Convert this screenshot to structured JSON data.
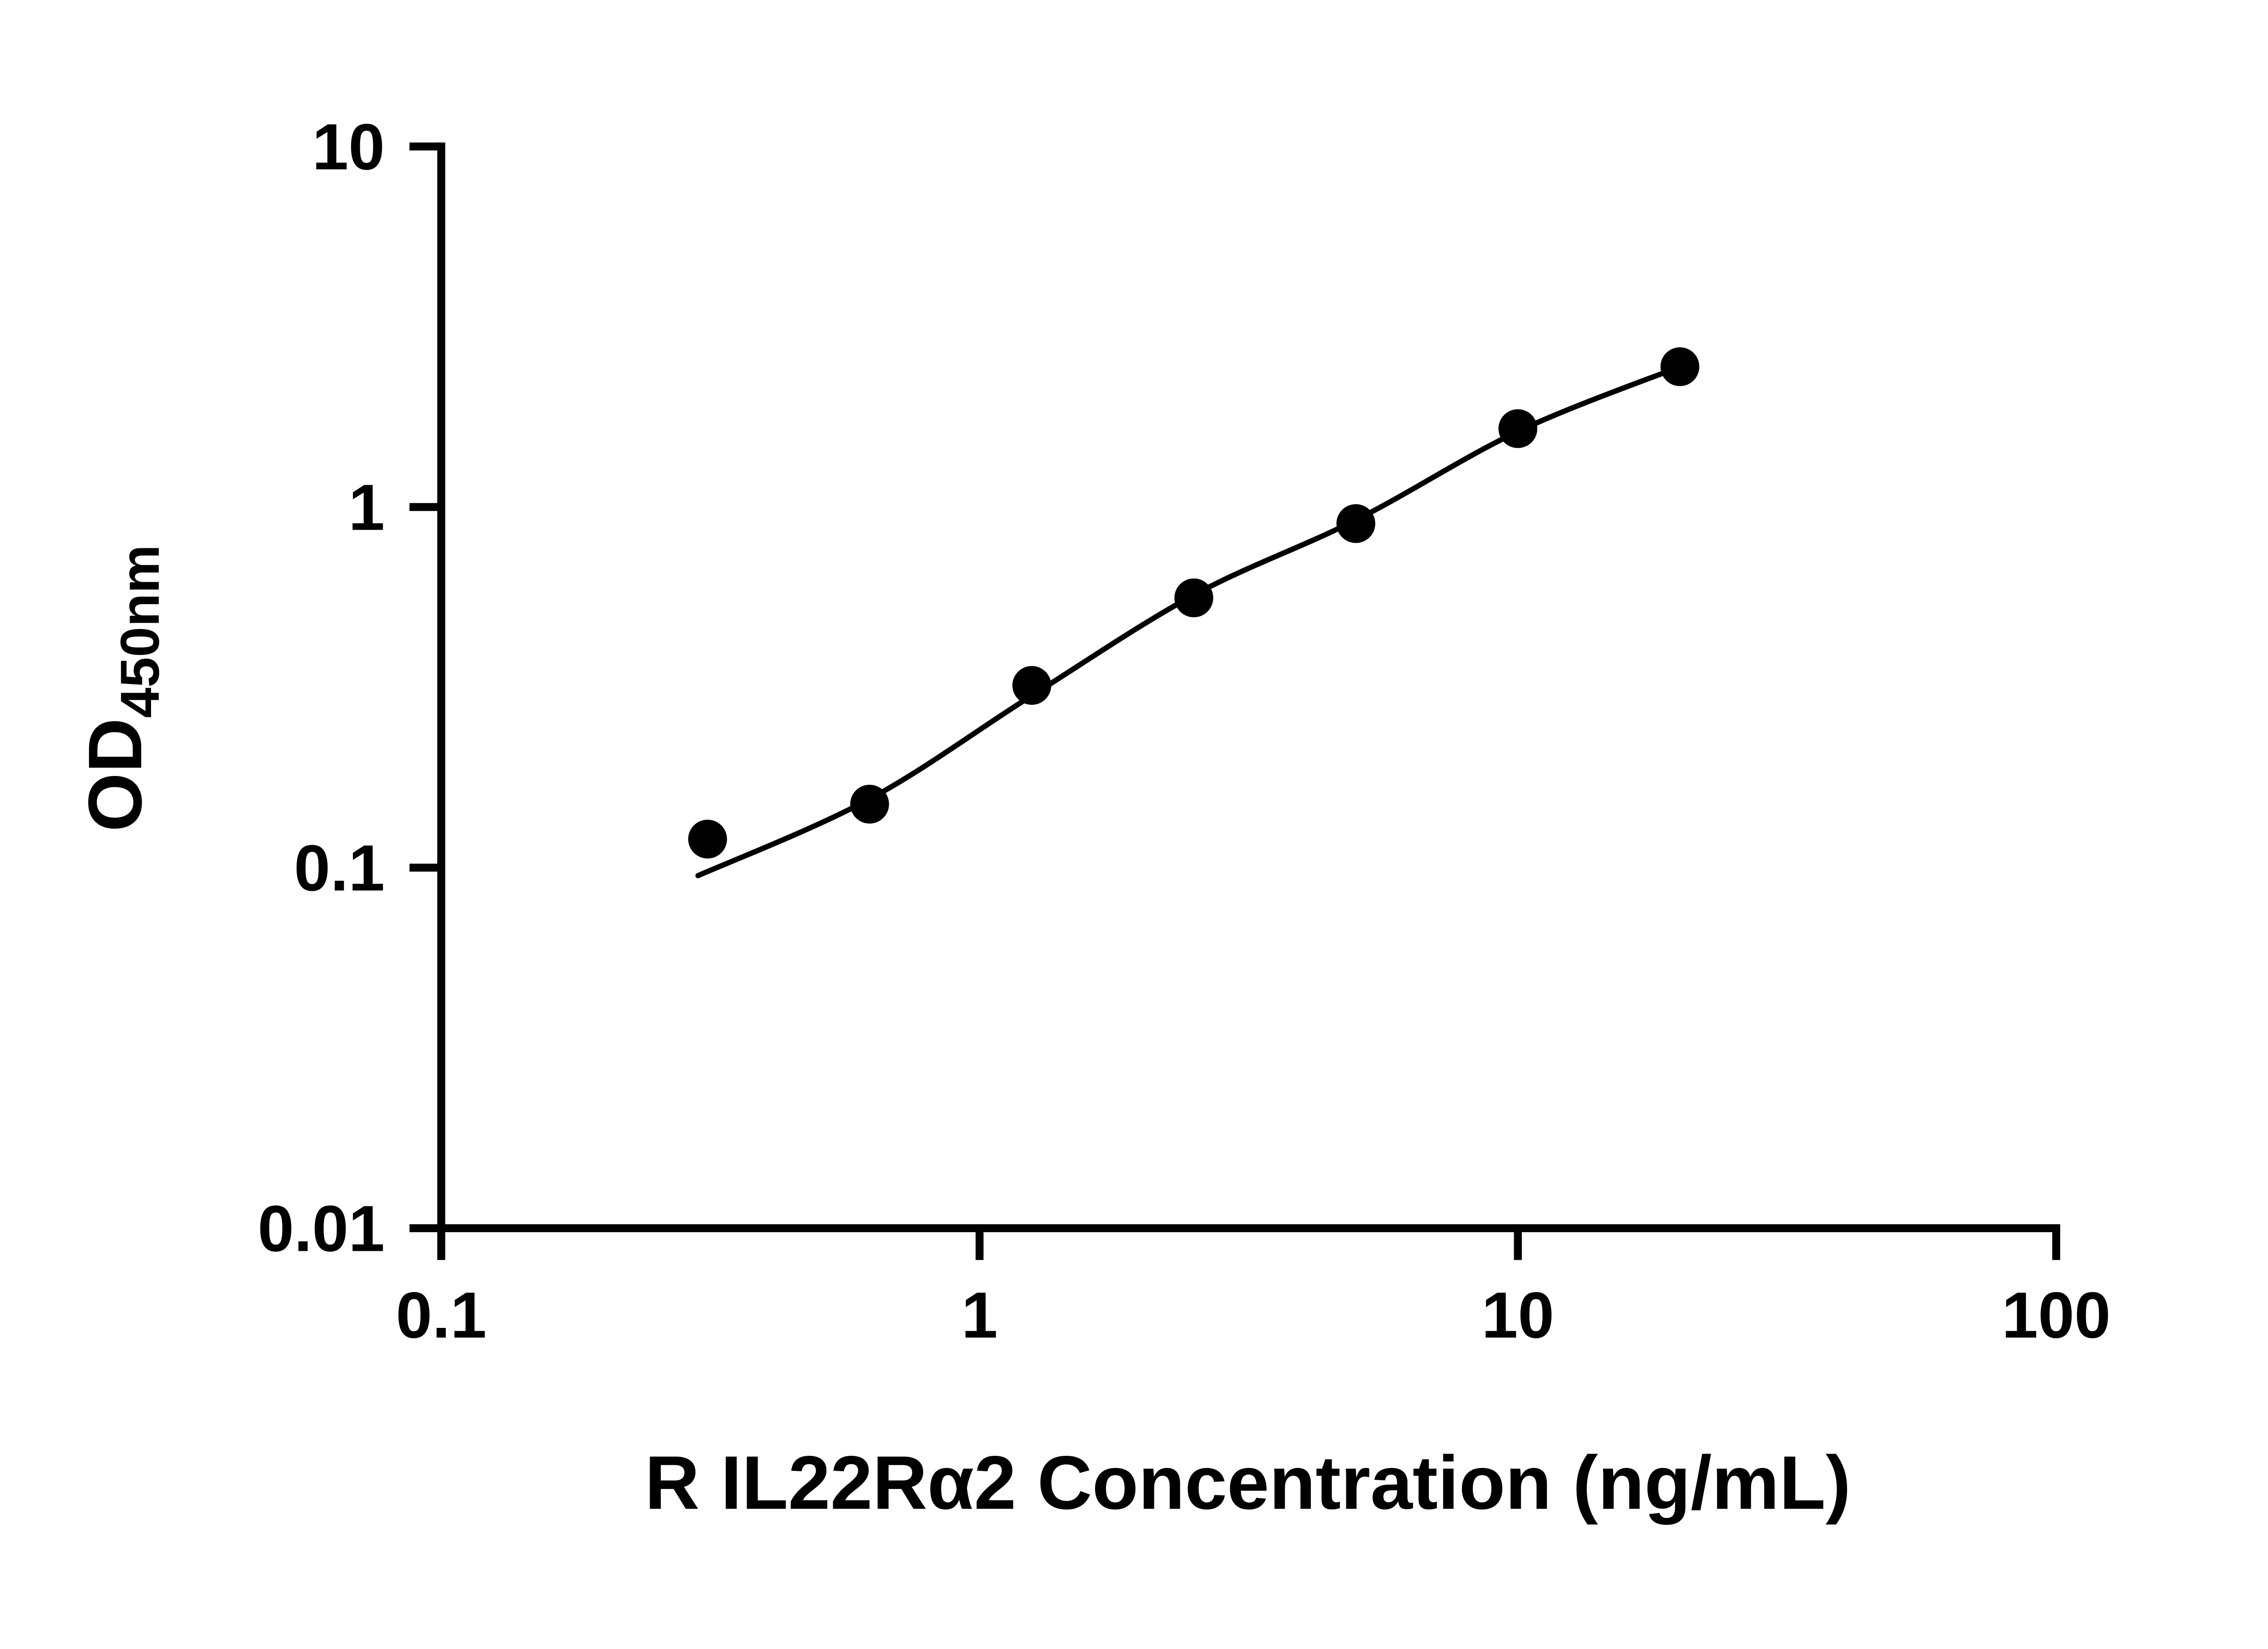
{
  "chart_data": {
    "type": "scatter",
    "title": "",
    "xlabel": "R IL22Rα2 Concentration (ng/mL)",
    "ylabel_main": "OD",
    "ylabel_sub": "450nm",
    "x_scale": "log",
    "y_scale": "log",
    "xlim": [
      0.1,
      100
    ],
    "ylim": [
      0.01,
      10
    ],
    "x_ticks": [
      0.1,
      1,
      10,
      100
    ],
    "x_tick_labels": [
      "0.1",
      "1",
      "10",
      "100"
    ],
    "y_ticks": [
      0.01,
      0.1,
      1,
      10
    ],
    "y_tick_labels": [
      "0.01",
      "0.1",
      "1",
      "10"
    ],
    "grid": false,
    "legend": "none",
    "marker_color": "#000000",
    "line_color": "#000000",
    "series": [
      {
        "name": "standard-curve-points",
        "marker": "filled-circle",
        "points": [
          {
            "x": 0.3125,
            "y": 0.12
          },
          {
            "x": 0.625,
            "y": 0.15
          },
          {
            "x": 1.25,
            "y": 0.32
          },
          {
            "x": 2.5,
            "y": 0.56
          },
          {
            "x": 5,
            "y": 0.9
          },
          {
            "x": 10,
            "y": 1.65
          },
          {
            "x": 20,
            "y": 2.45
          }
        ]
      }
    ],
    "fit_curve": {
      "style": "smooth",
      "points": [
        {
          "x": 0.3,
          "y": 0.095
        },
        {
          "x": 0.625,
          "y": 0.155
        },
        {
          "x": 1.25,
          "y": 0.3
        },
        {
          "x": 2.5,
          "y": 0.57
        },
        {
          "x": 5,
          "y": 0.92
        },
        {
          "x": 10,
          "y": 1.62
        },
        {
          "x": 20,
          "y": 2.45
        }
      ]
    }
  }
}
